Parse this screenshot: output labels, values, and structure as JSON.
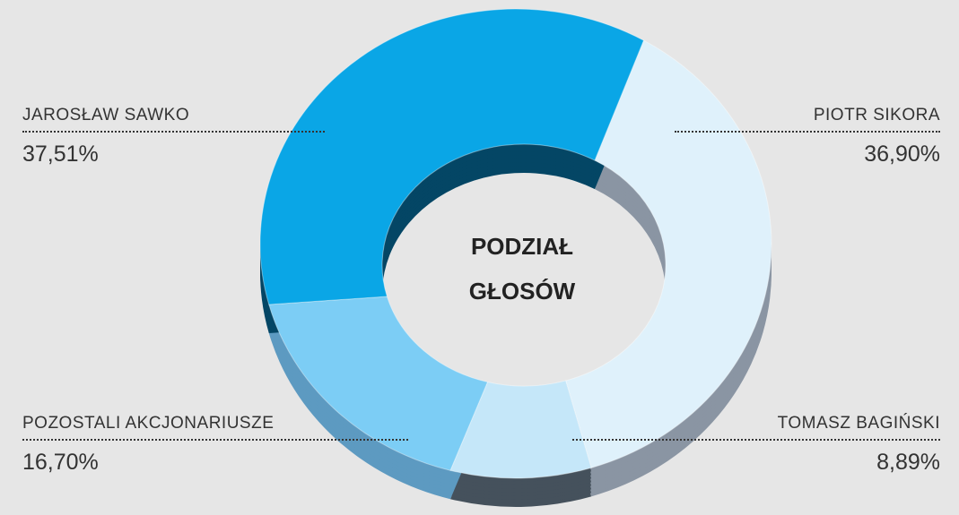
{
  "chart_data": {
    "type": "pie",
    "title": "PODZIAŁ GŁOSÓW",
    "categories": [
      "PIOTR SIKORA",
      "TOMASZ BAGIŃSKI",
      "POZOSTALI AKCJONARIUSZE",
      "JAROSŁAW SAWKO"
    ],
    "values": [
      36.9,
      8.89,
      16.7,
      37.51
    ],
    "value_labels": [
      "36,90%",
      "8,89%",
      "16,70%",
      "37,51%"
    ],
    "colors": [
      "#dff1fb",
      "#c5e7f9",
      "#7ccdf5",
      "#0aa6e6"
    ]
  }
}
